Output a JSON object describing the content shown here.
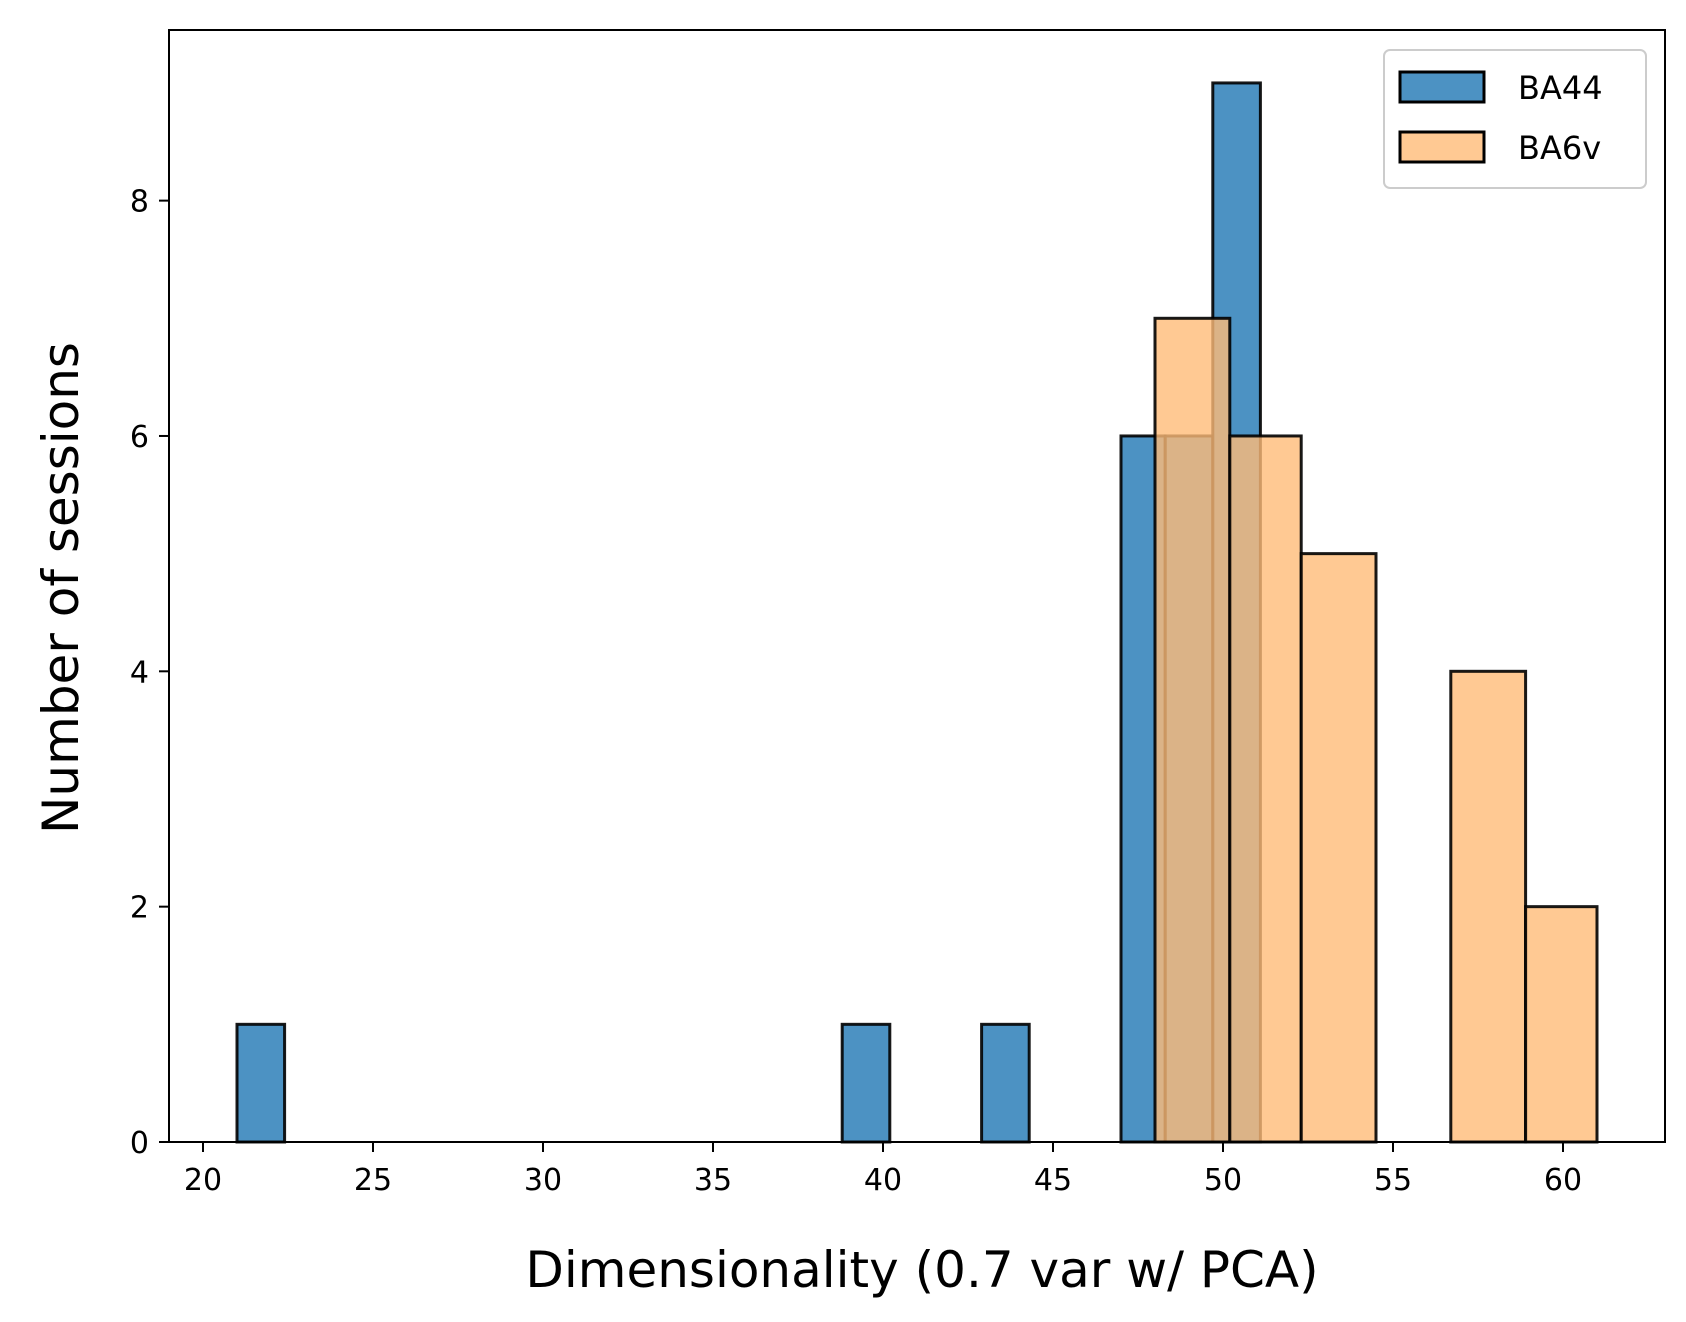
{
  "chart_data": {
    "type": "bar",
    "subtype": "histogram",
    "title": "",
    "xlabel": "Dimensionality (0.7 var w/ PCA)",
    "ylabel": "Number of sessions",
    "xlim": [
      19,
      63
    ],
    "ylim": [
      0,
      9.45
    ],
    "xticks": [
      20,
      25,
      30,
      35,
      40,
      45,
      50,
      55,
      60
    ],
    "yticks": [
      0,
      2,
      4,
      6,
      8
    ],
    "grid": false,
    "legend_position": "top-right",
    "series": [
      {
        "name": "BA44",
        "color": "#1f77b4",
        "bins": [
          {
            "x0": 21.0,
            "x1": 22.4,
            "count": 1
          },
          {
            "x0": 22.4,
            "x1": 38.8,
            "count": 0
          },
          {
            "x0": 38.8,
            "x1": 40.2,
            "count": 1
          },
          {
            "x0": 40.2,
            "x1": 42.9,
            "count": 0
          },
          {
            "x0": 42.9,
            "x1": 44.3,
            "count": 1
          },
          {
            "x0": 44.3,
            "x1": 47.0,
            "count": 0
          },
          {
            "x0": 47.0,
            "x1": 48.3,
            "count": 6
          },
          {
            "x0": 48.3,
            "x1": 49.7,
            "count": 6
          },
          {
            "x0": 49.7,
            "x1": 51.1,
            "count": 9
          }
        ]
      },
      {
        "name": "BA6v",
        "color": "#ffbb78",
        "bins": [
          {
            "x0": 48.0,
            "x1": 50.2,
            "count": 7
          },
          {
            "x0": 50.2,
            "x1": 52.3,
            "count": 6
          },
          {
            "x0": 52.3,
            "x1": 54.5,
            "count": 5
          },
          {
            "x0": 54.5,
            "x1": 56.7,
            "count": 0
          },
          {
            "x0": 56.7,
            "x1": 58.9,
            "count": 4
          },
          {
            "x0": 58.9,
            "x1": 61.0,
            "count": 2
          }
        ]
      }
    ]
  }
}
